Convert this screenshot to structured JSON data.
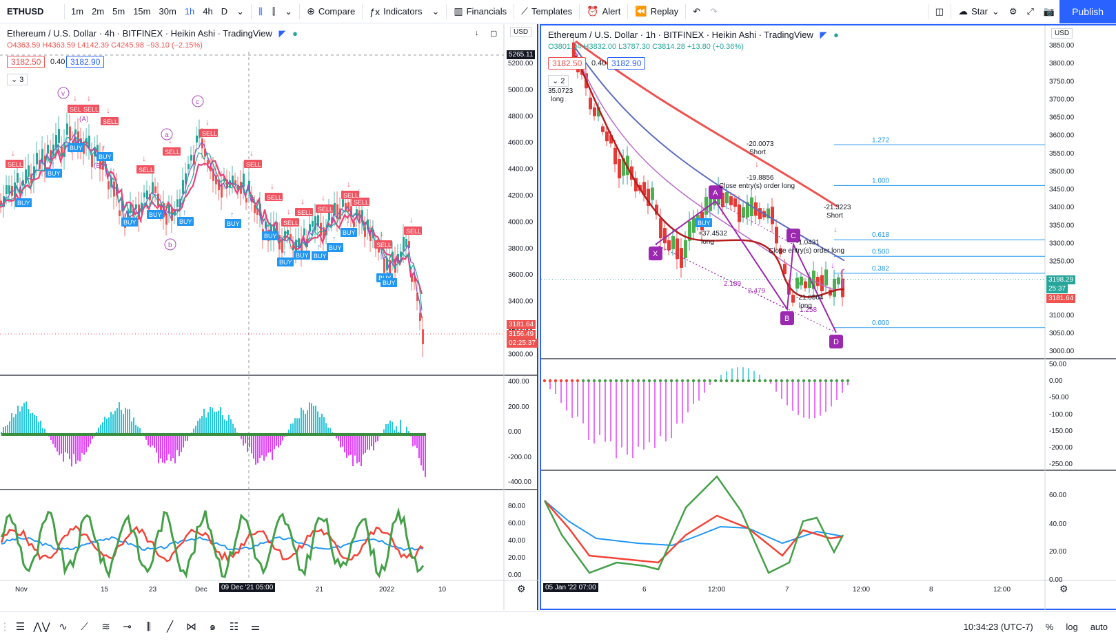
{
  "toolbar": {
    "symbol": "ETHUSD",
    "intervals": [
      "1m",
      "2m",
      "5m",
      "15m",
      "30m",
      "1h",
      "4h",
      "D"
    ],
    "active_interval": "1h",
    "compare": "Compare",
    "indicators": "Indicators",
    "financials": "Financials",
    "templates": "Templates",
    "alert": "Alert",
    "replay": "Replay",
    "star": "Star",
    "publish": "Publish"
  },
  "left_pane": {
    "title": "Ethereum / U.S. Dollar · 4h · BITFINEX · Heikin Ashi · TradingView",
    "ohlc": {
      "o": "O4363.59",
      "h": "H4363.59",
      "l": "L4142.39",
      "c": "C4245.98",
      "chg": "−93.10 (−2.15%)"
    },
    "sell_price": "3182.50",
    "spread": "0.40",
    "buy_price": "3182.90",
    "collapsed_count": "3",
    "currency": "USD",
    "crosshair_price": "5265.11",
    "price_ticks": [
      "5200.00",
      "5000.00",
      "4800.00",
      "4600.00",
      "4400.00",
      "4200.00",
      "4000.00",
      "3800.00",
      "3600.00",
      "3400.00",
      "3200.00",
      "3000.00"
    ],
    "last_price": "3181.64",
    "last_price2": "3156.49",
    "countdown": "02:25:37",
    "osc1_ticks": [
      "400.00",
      "200.00",
      "0.00",
      "-200.00",
      "-400.00"
    ],
    "osc2_ticks": [
      "80.00",
      "60.00",
      "40.00",
      "20.00",
      "0.00"
    ],
    "time_ticks": [
      "Nov",
      "15",
      "23",
      "Dec",
      "21",
      "2022",
      "10"
    ],
    "time_cursor": "09 Dec '21  05:00",
    "wave_labels": [
      "v",
      "(A)",
      "(B)",
      "a",
      "b",
      "c"
    ]
  },
  "right_pane": {
    "title": "Ethereum / U.S. Dollar · 1h · BITFINEX · Heikin Ashi · TradingView",
    "ohlc": {
      "o": "O3801.04",
      "h": "H3832.00",
      "l": "L3787.30",
      "c": "C3814.28",
      "chg": "+13.80 (+0.36%)"
    },
    "sell_price": "3182.50",
    "spread": "0.40",
    "buy_price": "3182.90",
    "collapsed_count": "2",
    "currency": "USD",
    "price_ticks": [
      "3850.00",
      "3800.00",
      "3750.00",
      "3700.00",
      "3650.00",
      "3600.00",
      "3550.00",
      "3500.00",
      "3450.00",
      "3400.00",
      "3350.00",
      "3300.00",
      "3250.00",
      "3200.00",
      "3150.00",
      "3100.00",
      "3050.00",
      "3000.00"
    ],
    "last_price": "3198.29",
    "countdown": "25:37",
    "last_price2": "3181.64",
    "fib_levels": [
      "1.272",
      "1.000",
      "0.618",
      "0.500",
      "0.382",
      "0.000"
    ],
    "pattern_points": [
      "X",
      "A",
      "B",
      "C",
      "D"
    ],
    "ratios": [
      "2.189",
      "2.479",
      "1.258"
    ],
    "trades": [
      {
        "label": "long",
        "value": "35.0723"
      },
      {
        "label": "Short",
        "value": "-20.0073"
      },
      {
        "label": "Close entry(s) order long",
        "value": "-19.8856"
      },
      {
        "label": "long",
        "value": "+37.4532"
      },
      {
        "label": "Short",
        "value": "-21.3223"
      },
      {
        "label": "Close entry(s) order long",
        "value": "-1.0431"
      },
      {
        "label": "long",
        "value": "-21.0504"
      }
    ],
    "osc1_ticks": [
      "50.00",
      "0.00",
      "-50.00",
      "-100.00",
      "-150.00",
      "-200.00",
      "-250.00"
    ],
    "osc2_ticks": [
      "60.00",
      "40.00",
      "20.00",
      "0.00"
    ],
    "time_ticks": [
      "6",
      "12:00",
      "7",
      "12:00",
      "8",
      "12:00"
    ],
    "time_cursor": "05 Jan '22  07:00"
  },
  "bottom_bar": {
    "clock": "10:34:23 (UTC-7)",
    "percent": "%",
    "log": "log",
    "auto": "auto"
  },
  "colors": {
    "accent": "#2962ff",
    "bull": "#26a69a",
    "bear": "#ef5350",
    "sell_tag": "#f0525f",
    "buy_tag": "#2196f3",
    "harmonic": "#9c27b0"
  }
}
